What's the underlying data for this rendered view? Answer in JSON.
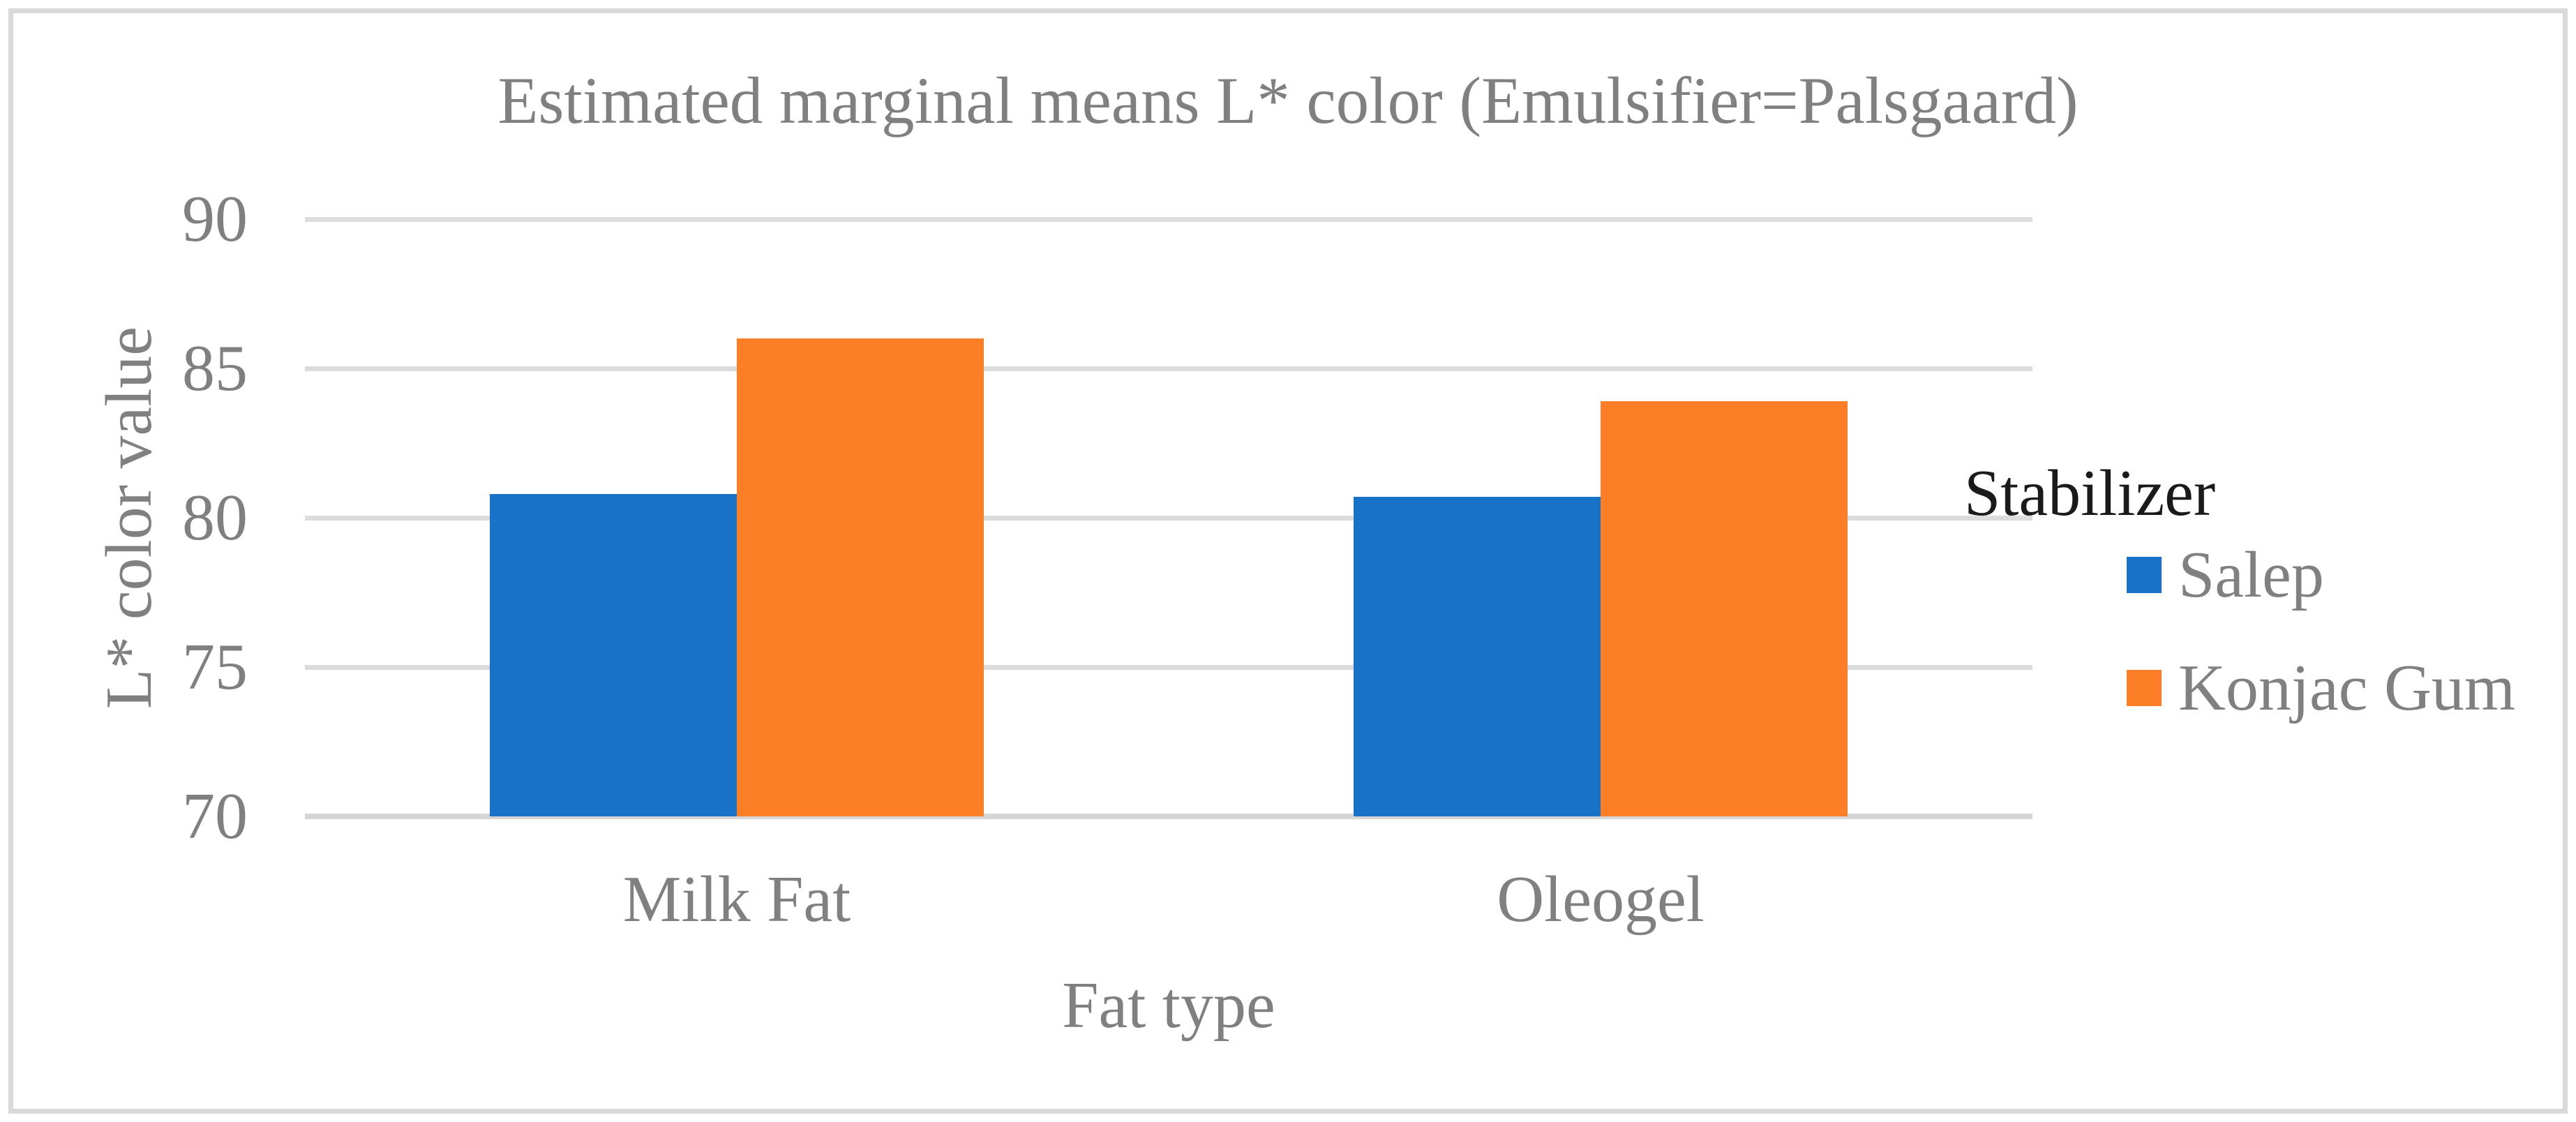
{
  "chart_data": {
    "type": "bar",
    "title": "Estimated marginal means L* color (Emulsifier=Palsgaard)",
    "xlabel": "Fat type",
    "ylabel": "L* color value",
    "categories": [
      "Milk Fat",
      "Oleogel"
    ],
    "series": [
      {
        "name": "Salep",
        "color": "#1772C8",
        "values": [
          80.8,
          80.7
        ]
      },
      {
        "name": "Konjac Gum",
        "color": "#FC7E27",
        "values": [
          86.0,
          83.9
        ]
      }
    ],
    "ylim": [
      70,
      90
    ],
    "yticks": [
      70,
      75,
      80,
      85,
      90
    ],
    "grid": true,
    "legend": {
      "title": "Stabilizer",
      "position": "right",
      "entries": [
        "Salep",
        "Konjac Gum"
      ]
    },
    "appearance": {
      "background": "#FFFFFF",
      "border_color": "#D9D9D9",
      "gridline_color": "#DCDCDC",
      "baseline_color": "#D6D6D6",
      "text_color": "#808080",
      "legend_title_color": "#1A1A1A"
    }
  }
}
